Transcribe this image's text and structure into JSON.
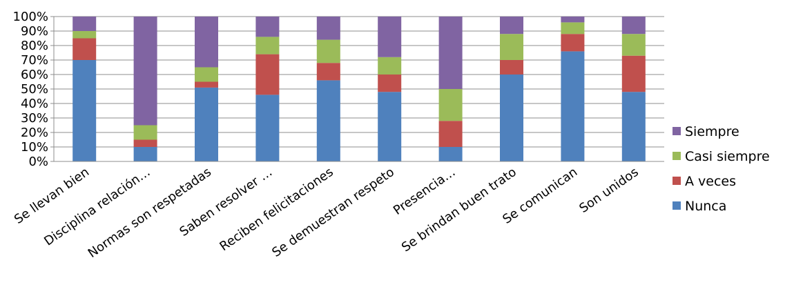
{
  "chart_data": {
    "type": "bar",
    "stacked": "percent",
    "categories": [
      "Se llevan bien",
      "Disciplina relación…",
      "Normas son respetadas",
      "Saben resolver …",
      "Reciben felicitaciones",
      "Se demuestran respeto",
      "Presencia…",
      "Se brindan buen trato",
      "Se comunican",
      "Son unidos"
    ],
    "series": [
      {
        "name": "Nunca",
        "color": "#4F81BD",
        "values": [
          70,
          10,
          51,
          46,
          56,
          48,
          10,
          60,
          76,
          48
        ]
      },
      {
        "name": "A veces",
        "color": "#C0504D",
        "values": [
          15,
          5,
          4,
          28,
          12,
          12,
          18,
          10,
          12,
          25
        ]
      },
      {
        "name": "Casi siempre",
        "color": "#9BBB59",
        "values": [
          5,
          10,
          10,
          12,
          16,
          12,
          22,
          18,
          8,
          15
        ]
      },
      {
        "name": "Siempre",
        "color": "#8064A2",
        "values": [
          10,
          75,
          35,
          14,
          16,
          28,
          50,
          12,
          4,
          12
        ]
      }
    ],
    "y_ticks": [
      "0%",
      "10%",
      "20%",
      "30%",
      "40%",
      "50%",
      "60%",
      "70%",
      "80%",
      "90%",
      "100%"
    ],
    "ylim": [
      0,
      100
    ],
    "grid": true,
    "legend_position": "right",
    "legend_order": [
      "Siempre",
      "Casi siempre",
      "A veces",
      "Nunca"
    ]
  }
}
